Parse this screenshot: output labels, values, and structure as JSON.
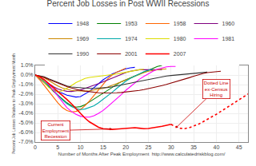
{
  "chart_data": {
    "type": "line",
    "title": "Percent Job Losses in Post WWII Recessions",
    "x_label": "Number of Months After Peak Employment  http://www.calculatedriskblog.com/",
    "y_label": "Percent Job Losses Relative to Peak Employment Month",
    "x": [
      0,
      1,
      2,
      3,
      4,
      5,
      6,
      7,
      8,
      9,
      10,
      11,
      12,
      13,
      14,
      15,
      16,
      17,
      18,
      19,
      20,
      21,
      22,
      23,
      24,
      25,
      26,
      27,
      28,
      29,
      30,
      31,
      32,
      33,
      34,
      35,
      36,
      37,
      38,
      39,
      40,
      41,
      42,
      43,
      44,
      45,
      46,
      47
    ],
    "xlim": [
      0,
      47
    ],
    "xticks": [
      0,
      5,
      10,
      15,
      20,
      25,
      30,
      35,
      40,
      45
    ],
    "ylim": [
      -7.0,
      1.0
    ],
    "yticks": [
      {
        "value": 1.0,
        "label": "1.0%"
      },
      {
        "value": 0.0,
        "label": "0.0%"
      },
      {
        "value": -1.0,
        "label": "-1.0%"
      },
      {
        "value": -2.0,
        "label": "-2.0%"
      },
      {
        "value": -3.0,
        "label": "-3.0%"
      },
      {
        "value": -4.0,
        "label": "-4.0%"
      },
      {
        "value": -5.0,
        "label": "-5.0%"
      },
      {
        "value": -6.0,
        "label": "-6.0%"
      },
      {
        "value": -7.0,
        "label": "-7.0%"
      }
    ],
    "grid": true,
    "legend": "top",
    "series": [
      {
        "name": "1948",
        "color": "#0000ff",
        "values": [
          0.0,
          -0.43,
          -0.79,
          -1.18,
          -1.55,
          -1.77,
          -1.9,
          -2.1,
          -2.22,
          -2.3,
          -2.25,
          -2.0,
          -1.7,
          -1.3,
          -0.9,
          -0.5,
          -0.2,
          0.1,
          0.3,
          0.5,
          0.65,
          0.75,
          0.8,
          null,
          null,
          null,
          null,
          null,
          null,
          null,
          null,
          null,
          null,
          null,
          null,
          null,
          null,
          null,
          null,
          null,
          null,
          null,
          null,
          null,
          null,
          null,
          null,
          null
        ]
      },
      {
        "name": "1953",
        "color": "#008000",
        "values": [
          0.0,
          -0.3,
          -0.7,
          -1.2,
          -1.7,
          -2.1,
          -2.5,
          -2.9,
          -3.2,
          -3.35,
          -3.3,
          -3.1,
          -2.8,
          -2.5,
          -2.2,
          -1.9,
          -1.6,
          -1.3,
          -1.0,
          -0.7,
          -0.5,
          -0.3,
          -0.1,
          0.1,
          0.3,
          0.5,
          0.7,
          0.9,
          1.0,
          null,
          null,
          null,
          null,
          null,
          null,
          null,
          null,
          null,
          null,
          null,
          null,
          null,
          null,
          null,
          null,
          null,
          null,
          null
        ]
      },
      {
        "name": "1958",
        "color": "#ff6600",
        "values": [
          0.0,
          -0.5,
          -1.1,
          -1.7,
          -2.4,
          -2.9,
          -3.4,
          -3.7,
          -3.85,
          -3.8,
          -3.6,
          -3.2,
          -2.7,
          -2.1,
          -1.5,
          -0.9,
          -0.4,
          0.0,
          0.3,
          0.5,
          0.7,
          null,
          null,
          null,
          null,
          null,
          null,
          null,
          null,
          null,
          null,
          null,
          null,
          null,
          null,
          null,
          null,
          null,
          null,
          null,
          null,
          null,
          null,
          null,
          null,
          null,
          null,
          null
        ]
      },
      {
        "name": "1960",
        "color": "#800080",
        "values": [
          0.0,
          -0.2,
          -0.5,
          -0.9,
          -1.2,
          -1.45,
          -1.6,
          -1.7,
          -1.72,
          -1.65,
          -1.55,
          -1.4,
          -1.25,
          -1.1,
          -0.9,
          -0.7,
          -0.5,
          -0.3,
          -0.1,
          0.1,
          0.25,
          0.4,
          0.5,
          0.55,
          0.55,
          0.55,
          0.55,
          0.55,
          0.55,
          null,
          null,
          null,
          null,
          null,
          null,
          null,
          null,
          null,
          null,
          null,
          null,
          null,
          null,
          null,
          null,
          null,
          null,
          null
        ]
      },
      {
        "name": "1969",
        "color": "#cc8800",
        "values": [
          0.0,
          -0.1,
          -0.3,
          -0.6,
          -0.9,
          -1.15,
          -1.35,
          -1.5,
          -1.6,
          -1.65,
          -1.68,
          -1.68,
          -1.65,
          -1.58,
          -1.5,
          -1.4,
          -1.25,
          -1.1,
          -0.9,
          -0.7,
          -0.5,
          -0.3,
          -0.1,
          0.1,
          0.25,
          0.4,
          0.5,
          0.55,
          0.6,
          0.65,
          null,
          null,
          null,
          null,
          null,
          null,
          null,
          null,
          null,
          null,
          null,
          null,
          null,
          null,
          null,
          null,
          null,
          null
        ]
      },
      {
        "name": "1974",
        "color": "#00aaaa",
        "values": [
          0.0,
          -0.3,
          -0.7,
          -1.1,
          -1.6,
          -2.1,
          -2.6,
          -3.0,
          -3.3,
          -3.5,
          -3.6,
          -3.55,
          -3.4,
          -3.2,
          -2.9,
          -2.55,
          -2.2,
          -1.8,
          -1.4,
          -1.0,
          -0.65,
          -0.35,
          -0.1,
          0.15,
          0.35,
          0.5,
          0.6,
          null,
          null,
          null,
          null,
          null,
          null,
          null,
          null,
          null,
          null,
          null,
          null,
          null,
          null,
          null,
          null,
          null,
          null,
          null,
          null,
          null
        ]
      },
      {
        "name": "1980",
        "color": "#dddd00",
        "values": [
          0.0,
          -0.3,
          -0.8,
          -1.3,
          -1.6,
          -1.75,
          -1.65,
          -1.4,
          -1.1,
          -0.8,
          -0.55,
          -0.35,
          -0.25,
          -0.2,
          -0.15,
          -0.1,
          -0.05,
          0.0,
          0.1,
          0.2,
          0.3,
          0.4,
          0.5,
          0.55,
          0.6,
          null,
          null,
          null,
          null,
          null,
          null,
          null,
          null,
          null,
          null,
          null,
          null,
          null,
          null,
          null,
          null,
          null,
          null,
          null,
          null,
          null,
          null,
          null
        ]
      },
      {
        "name": "1981",
        "color": "#ff00ff",
        "values": [
          0.0,
          -0.2,
          -0.5,
          -1.0,
          -1.6,
          -2.2,
          -2.8,
          -3.4,
          -3.8,
          -4.1,
          -4.3,
          -4.4,
          -4.4,
          -4.25,
          -4.0,
          -3.7,
          -3.3,
          -2.9,
          -2.5,
          -2.05,
          -1.6,
          -1.2,
          -0.8,
          -0.45,
          -0.15,
          0.15,
          0.4,
          0.6,
          0.75,
          0.85,
          0.9,
          0.9,
          null,
          null,
          null,
          null,
          null,
          null,
          null,
          null,
          null,
          null,
          null,
          null,
          null,
          null,
          null,
          null
        ]
      },
      {
        "name": "1990",
        "color": "#333333",
        "values": [
          0.0,
          -0.1,
          -0.2,
          -0.4,
          -0.6,
          -0.8,
          -1.0,
          -1.15,
          -1.25,
          -1.3,
          -1.35,
          -1.38,
          -1.4,
          -1.4,
          -1.38,
          -1.35,
          -1.3,
          -1.23,
          -1.15,
          -1.05,
          -0.95,
          -0.85,
          -0.75,
          -0.65,
          -0.55,
          -0.45,
          -0.35,
          -0.25,
          -0.15,
          -0.1,
          -0.05,
          0.0,
          0.05,
          0.1,
          0.15,
          0.2,
          0.25,
          0.28,
          0.3,
          null,
          null,
          null,
          null,
          null,
          null,
          null,
          null,
          null
        ]
      },
      {
        "name": "2001",
        "color": "#8b0000",
        "values": [
          0.0,
          -0.1,
          -0.25,
          -0.45,
          -0.65,
          -0.85,
          -1.05,
          -1.2,
          -1.35,
          -1.5,
          -1.6,
          -1.68,
          -1.75,
          -1.8,
          -1.85,
          -1.87,
          -1.88,
          -1.87,
          -1.85,
          -1.82,
          -1.78,
          -1.73,
          -1.67,
          -1.6,
          -1.52,
          -1.43,
          -1.33,
          -1.22,
          -1.1,
          -0.98,
          -0.85,
          -0.72,
          -0.58,
          -0.43,
          -0.28,
          -0.12,
          0.03,
          0.15,
          0.25,
          0.32,
          0.37,
          0.4,
          null,
          null,
          null,
          null,
          null,
          null
        ]
      },
      {
        "name": "2007",
        "color": "#ff0000",
        "values": [
          0.0,
          -0.2,
          -0.5,
          -0.9,
          -1.3,
          -1.7,
          -2.1,
          -2.55,
          -3.0,
          -3.5,
          -4.0,
          -4.5,
          -4.9,
          -5.2,
          -5.45,
          -5.6,
          -5.65,
          -5.68,
          -5.65,
          -5.6,
          -5.55,
          -5.5,
          -5.5,
          -5.55,
          -5.6,
          -5.58,
          -5.52,
          -5.45,
          -5.35,
          -5.25,
          -5.15,
          null,
          null,
          null,
          null,
          null,
          null,
          null,
          null,
          null,
          null,
          null,
          null,
          null,
          null,
          null,
          null,
          null
        ]
      },
      {
        "name": "2007",
        "color": "#ff0000",
        "line_style": "dotted",
        "values": [
          null,
          null,
          null,
          null,
          null,
          null,
          null,
          null,
          null,
          null,
          null,
          null,
          null,
          null,
          null,
          null,
          null,
          null,
          null,
          null,
          null,
          null,
          null,
          null,
          null,
          null,
          null,
          null,
          null,
          null,
          -5.15,
          -5.4,
          -5.55,
          -5.6,
          -5.5,
          -5.35,
          -5.15,
          -4.9,
          -4.65,
          -4.38,
          -4.1,
          -3.8,
          -3.5,
          -3.18,
          -2.88,
          -2.58,
          -2.28,
          -1.98
        ]
      }
    ],
    "annotations": [
      {
        "text": "Current\nEmployment\nRecession",
        "x": 17,
        "y": -5.63,
        "color": "#cc0000"
      },
      {
        "text": "Dotted Line\nex-Census\nHiring",
        "x": 31,
        "y": -5.55,
        "color": "#cc0000"
      }
    ]
  }
}
